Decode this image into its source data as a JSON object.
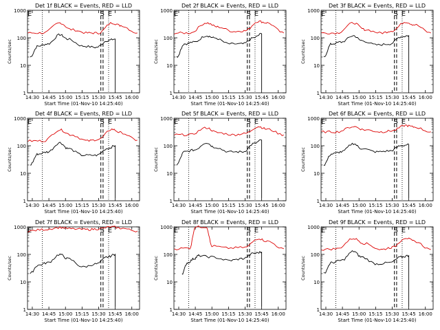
{
  "xlabel": "Start Time (01-Nov-10 14:25:40)",
  "ylabel": "Counts/sec",
  "x_ticks": [
    "14:30",
    "14:45",
    "15:00",
    "15:15",
    "15:30",
    "15:45",
    "16:00"
  ],
  "y_ticks": [
    "1",
    "10",
    "100",
    "1000"
  ],
  "marker_letters": [
    "E",
    "S",
    "E"
  ],
  "colors": {
    "events": "#000000",
    "lld": "#dd0000",
    "axis": "#000000"
  },
  "chart_data": [
    {
      "type": "line",
      "title": "Det 1f BLACK = Events, RED = LLD",
      "xlim": [
        "14:25:40",
        "16:07"
      ],
      "ylim": [
        1,
        1000
      ],
      "yscale": "log",
      "markers": {
        "dotted": [
          "14:39",
          "15:39"
        ],
        "dashed": [
          "15:32",
          "15:34"
        ]
      },
      "series": [
        {
          "name": "Events",
          "points": [
            [
              "14:28",
              20
            ],
            [
              "14:35",
              50
            ],
            [
              "14:44",
              60
            ],
            [
              "14:55",
              130
            ],
            [
              "15:02",
              90
            ],
            [
              "15:16",
              50
            ],
            [
              "15:28",
              45
            ],
            [
              "15:38",
              80
            ],
            [
              "15:45",
              90
            ]
          ]
        },
        {
          "name": "LLD",
          "points": [
            [
              "14:26",
              150
            ],
            [
              "14:40",
              150
            ],
            [
              "14:55",
              350
            ],
            [
              "15:05",
              200
            ],
            [
              "15:20",
              150
            ],
            [
              "15:30",
              150
            ],
            [
              "15:42",
              350
            ],
            [
              "15:50",
              280
            ],
            [
              "16:05",
              150
            ]
          ]
        }
      ]
    },
    {
      "type": "line",
      "title": "Det 2f BLACK = Events, RED = LLD",
      "xlim": [
        "14:25:40",
        "16:07"
      ],
      "ylim": [
        1,
        1000
      ],
      "yscale": "log",
      "markers": {
        "dotted": [
          "14:39",
          "15:39"
        ],
        "dashed": [
          "15:32",
          "15:34"
        ]
      },
      "series": [
        {
          "name": "Events",
          "points": [
            [
              "14:28",
              20
            ],
            [
              "14:35",
              60
            ],
            [
              "14:44",
              70
            ],
            [
              "14:55",
              120
            ],
            [
              "15:02",
              100
            ],
            [
              "15:16",
              60
            ],
            [
              "15:28",
              60
            ],
            [
              "15:38",
              100
            ],
            [
              "15:45",
              140
            ]
          ]
        },
        {
          "name": "LLD",
          "points": [
            [
              "14:26",
              150
            ],
            [
              "14:40",
              150
            ],
            [
              "14:55",
              350
            ],
            [
              "15:05",
              250
            ],
            [
              "15:20",
              170
            ],
            [
              "15:30",
              180
            ],
            [
              "15:42",
              400
            ],
            [
              "15:50",
              350
            ],
            [
              "16:05",
              150
            ]
          ]
        }
      ]
    },
    {
      "type": "line",
      "title": "Det 3f BLACK = Events, RED = LLD",
      "xlim": [
        "14:25:40",
        "16:07"
      ],
      "ylim": [
        1,
        1000
      ],
      "yscale": "log",
      "markers": {
        "dotted": [
          "14:39",
          "15:39"
        ],
        "dashed": [
          "15:32",
          "15:34"
        ]
      },
      "series": [
        {
          "name": "Events",
          "points": [
            [
              "14:28",
              20
            ],
            [
              "14:35",
              60
            ],
            [
              "14:44",
              70
            ],
            [
              "14:55",
              120
            ],
            [
              "15:02",
              80
            ],
            [
              "15:16",
              55
            ],
            [
              "15:28",
              60
            ],
            [
              "15:38",
              110
            ],
            [
              "15:45",
              120
            ]
          ]
        },
        {
          "name": "LLD",
          "points": [
            [
              "14:26",
              150
            ],
            [
              "14:40",
              150
            ],
            [
              "14:55",
              350
            ],
            [
              "15:05",
              200
            ],
            [
              "15:20",
              150
            ],
            [
              "15:30",
              180
            ],
            [
              "15:42",
              380
            ],
            [
              "15:50",
              300
            ],
            [
              "16:05",
              150
            ]
          ]
        }
      ]
    },
    {
      "type": "line",
      "title": "Det 4f BLACK = Events, RED = LLD",
      "xlim": [
        "14:25:40",
        "16:07"
      ],
      "ylim": [
        1,
        1000
      ],
      "yscale": "log",
      "markers": {
        "dotted": [
          "14:39",
          "15:39"
        ],
        "dashed": [
          "15:32",
          "15:34"
        ]
      },
      "series": [
        {
          "name": "Events",
          "points": [
            [
              "14:28",
              20
            ],
            [
              "14:35",
              50
            ],
            [
              "14:44",
              60
            ],
            [
              "14:55",
              130
            ],
            [
              "15:02",
              80
            ],
            [
              "15:16",
              45
            ],
            [
              "15:28",
              45
            ],
            [
              "15:38",
              80
            ],
            [
              "15:45",
              100
            ]
          ]
        },
        {
          "name": "LLD",
          "points": [
            [
              "14:26",
              150
            ],
            [
              "14:40",
              150
            ],
            [
              "14:55",
              380
            ],
            [
              "15:05",
              250
            ],
            [
              "15:20",
              150
            ],
            [
              "15:30",
              170
            ],
            [
              "15:42",
              400
            ],
            [
              "15:50",
              300
            ],
            [
              "16:05",
              160
            ]
          ]
        }
      ]
    },
    {
      "type": "line",
      "title": "Det 5f BLACK = Events, RED = LLD",
      "xlim": [
        "14:25:40",
        "16:07"
      ],
      "ylim": [
        1,
        1000
      ],
      "yscale": "log",
      "markers": {
        "dotted": [
          "14:39",
          "15:39"
        ],
        "dashed": [
          "15:32",
          "15:34"
        ]
      },
      "series": [
        {
          "name": "Events",
          "points": [
            [
              "14:28",
              20
            ],
            [
              "14:35",
              60
            ],
            [
              "14:44",
              70
            ],
            [
              "14:55",
              130
            ],
            [
              "15:02",
              90
            ],
            [
              "15:16",
              60
            ],
            [
              "15:28",
              60
            ],
            [
              "15:38",
              120
            ],
            [
              "15:45",
              160
            ]
          ]
        },
        {
          "name": "LLD",
          "points": [
            [
              "14:26",
              250
            ],
            [
              "14:40",
              250
            ],
            [
              "14:55",
              450
            ],
            [
              "15:05",
              300
            ],
            [
              "15:20",
              250
            ],
            [
              "15:30",
              280
            ],
            [
              "15:42",
              500
            ],
            [
              "15:50",
              400
            ],
            [
              "16:05",
              250
            ]
          ]
        }
      ]
    },
    {
      "type": "line",
      "title": "Det 6f BLACK = Events, RED = LLD",
      "xlim": [
        "14:25:40",
        "16:07"
      ],
      "ylim": [
        1,
        1000
      ],
      "yscale": "log",
      "markers": {
        "dotted": [
          "14:39",
          "15:39"
        ],
        "dashed": [
          "15:32",
          "15:34"
        ]
      },
      "series": [
        {
          "name": "Events",
          "points": [
            [
              "14:28",
              20
            ],
            [
              "14:35",
              50
            ],
            [
              "14:44",
              60
            ],
            [
              "14:55",
              120
            ],
            [
              "15:02",
              80
            ],
            [
              "15:16",
              60
            ],
            [
              "15:28",
              65
            ],
            [
              "15:38",
              100
            ],
            [
              "15:45",
              110
            ]
          ]
        },
        {
          "name": "LLD",
          "points": [
            [
              "14:26",
              320
            ],
            [
              "14:40",
              320
            ],
            [
              "14:55",
              500
            ],
            [
              "15:05",
              380
            ],
            [
              "15:20",
              320
            ],
            [
              "15:30",
              350
            ],
            [
              "15:42",
              550
            ],
            [
              "15:50",
              480
            ],
            [
              "16:05",
              320
            ]
          ]
        }
      ]
    },
    {
      "type": "line",
      "title": "Det 7f BLACK = Events, RED = LLD",
      "xlim": [
        "14:25:40",
        "16:07"
      ],
      "ylim": [
        1,
        1000
      ],
      "yscale": "log",
      "markers": {
        "dotted": [
          "14:39",
          "15:39"
        ],
        "dashed": [
          "15:32",
          "15:34"
        ]
      },
      "series": [
        {
          "name": "Events",
          "points": [
            [
              "14:28",
              20
            ],
            [
              "14:35",
              40
            ],
            [
              "14:44",
              50
            ],
            [
              "14:55",
              100
            ],
            [
              "15:02",
              70
            ],
            [
              "15:16",
              35
            ],
            [
              "15:28",
              45
            ],
            [
              "15:38",
              80
            ],
            [
              "15:45",
              100
            ]
          ]
        },
        {
          "name": "LLD",
          "points": [
            [
              "14:26",
              700
            ],
            [
              "14:40",
              800
            ],
            [
              "14:55",
              950
            ],
            [
              "15:05",
              850
            ],
            [
              "15:20",
              800
            ],
            [
              "15:30",
              850
            ],
            [
              "15:42",
              1000
            ],
            [
              "15:50",
              900
            ],
            [
              "16:05",
              700
            ]
          ]
        }
      ]
    },
    {
      "type": "line",
      "title": "Det 8f BLACK = Events, RED = LLD",
      "xlim": [
        "14:25:40",
        "16:07"
      ],
      "ylim": [
        1,
        1000
      ],
      "yscale": "log",
      "markers": {
        "dotted": [
          "14:39",
          "15:39"
        ],
        "dashed": [
          "15:32",
          "15:34"
        ]
      },
      "series": [
        {
          "name": "Events",
          "points": [
            [
              "14:33",
              20
            ],
            [
              "14:38",
              50
            ],
            [
              "14:44",
              70
            ],
            [
              "14:48",
              90
            ],
            [
              "15:00",
              80
            ],
            [
              "15:16",
              60
            ],
            [
              "15:28",
              70
            ],
            [
              "15:38",
              110
            ],
            [
              "15:45",
              120
            ]
          ]
        },
        {
          "name": "LLD",
          "points": [
            [
              "14:26",
              160
            ],
            [
              "14:40",
              170
            ],
            [
              "14:45",
              1000
            ],
            [
              "14:55",
              1000
            ],
            [
              "15:00",
              200
            ],
            [
              "15:15",
              170
            ],
            [
              "15:30",
              180
            ],
            [
              "15:42",
              380
            ],
            [
              "15:50",
              300
            ],
            [
              "16:05",
              160
            ]
          ]
        }
      ]
    },
    {
      "type": "line",
      "title": "Det 9f BLACK = Events, RED = LLD",
      "xlim": [
        "14:25:40",
        "16:07"
      ],
      "ylim": [
        1,
        1000
      ],
      "yscale": "log",
      "markers": {
        "dotted": [
          "14:39",
          "15:39"
        ],
        "dashed": [
          "15:32",
          "15:34"
        ]
      },
      "series": [
        {
          "name": "Events",
          "points": [
            [
              "14:28",
              20
            ],
            [
              "14:35",
              50
            ],
            [
              "14:44",
              60
            ],
            [
              "14:55",
              130
            ],
            [
              "15:02",
              80
            ],
            [
              "15:16",
              45
            ],
            [
              "15:28",
              50
            ],
            [
              "15:38",
              80
            ],
            [
              "15:45",
              90
            ]
          ]
        },
        {
          "name": "LLD",
          "points": [
            [
              "14:26",
              150
            ],
            [
              "14:40",
              160
            ],
            [
              "14:55",
              380
            ],
            [
              "15:05",
              250
            ],
            [
              "15:20",
              150
            ],
            [
              "15:30",
              180
            ],
            [
              "15:42",
              400
            ],
            [
              "15:50",
              300
            ],
            [
              "16:05",
              150
            ]
          ]
        }
      ]
    }
  ]
}
